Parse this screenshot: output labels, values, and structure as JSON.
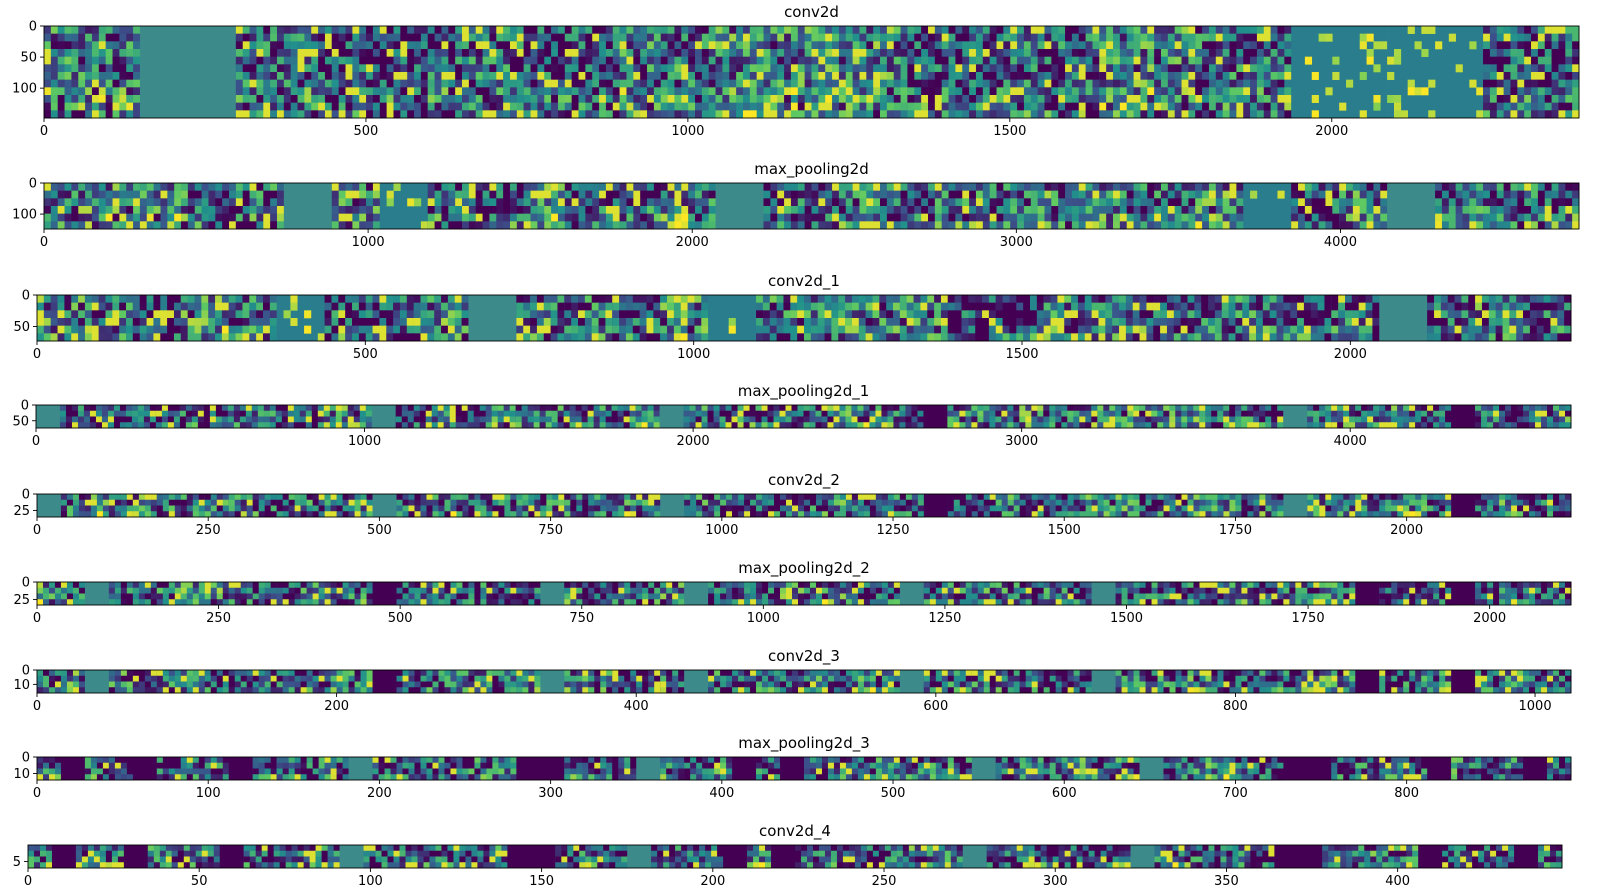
{
  "chart_data": [
    {
      "type": "heatmap",
      "title": "conv2d",
      "xlim": [
        0,
        2384
      ],
      "ylim": [
        148,
        0
      ],
      "x_ticks": [
        0,
        500,
        1000,
        1500,
        2000
      ],
      "y_ticks": [
        0,
        50,
        100
      ],
      "n_tiles": 16,
      "tile_width": 149,
      "dead_tiles": [],
      "blank_tiles": [
        1
      ],
      "sparse_tiles": [
        13,
        14
      ]
    },
    {
      "type": "heatmap",
      "title": "max_pooling2d",
      "xlim": [
        0,
        4736
      ],
      "ylim": [
        148,
        0
      ],
      "x_ticks": [
        0,
        1000,
        2000,
        3000,
        4000
      ],
      "y_ticks": [
        0,
        100
      ],
      "n_tiles": 32,
      "tile_width": 148,
      "dead_tiles": [],
      "blank_tiles": [
        5,
        14,
        28
      ],
      "sparse_tiles": [
        7,
        25
      ]
    },
    {
      "type": "heatmap",
      "title": "conv2d_1",
      "xlim": [
        0,
        2336
      ],
      "ylim": [
        73,
        0
      ],
      "x_ticks": [
        0,
        500,
        1000,
        1500,
        2000
      ],
      "y_ticks": [
        0,
        50
      ],
      "n_tiles": 32,
      "tile_width": 73,
      "dead_tiles": [],
      "blank_tiles": [
        9,
        28
      ],
      "sparse_tiles": [
        5,
        14
      ]
    },
    {
      "type": "heatmap",
      "title": "max_pooling2d_1",
      "xlim": [
        0,
        4672
      ],
      "ylim": [
        73,
        0
      ],
      "x_ticks": [
        0,
        1000,
        2000,
        3000,
        4000
      ],
      "y_ticks": [
        0,
        50
      ],
      "n_tiles": 64,
      "tile_width": 73,
      "dead_tiles": [
        37,
        59
      ],
      "blank_tiles": [
        0,
        14,
        26,
        52
      ],
      "sparse_tiles": []
    },
    {
      "type": "heatmap",
      "title": "conv2d_2",
      "xlim": [
        0,
        2240
      ],
      "ylim": [
        35,
        0
      ],
      "x_ticks": [
        0,
        250,
        500,
        750,
        1000,
        1250,
        1500,
        1750,
        2000
      ],
      "y_ticks": [
        0,
        25
      ],
      "n_tiles": 64,
      "tile_width": 35,
      "dead_tiles": [
        37,
        59
      ],
      "blank_tiles": [
        0,
        14,
        26,
        52
      ],
      "sparse_tiles": []
    },
    {
      "type": "heatmap",
      "title": "max_pooling2d_2",
      "xlim": [
        0,
        2112
      ],
      "ylim": [
        33,
        0
      ],
      "x_ticks": [
        0,
        250,
        500,
        750,
        1000,
        1250,
        1500,
        1750,
        2000
      ],
      "y_ticks": [
        0,
        25
      ],
      "n_tiles": 64,
      "tile_width": 33,
      "dead_tiles": [
        14,
        55,
        59
      ],
      "blank_tiles": [
        2,
        21,
        27,
        36,
        44
      ],
      "sparse_tiles": []
    },
    {
      "type": "heatmap",
      "title": "conv2d_3",
      "xlim": [
        0,
        1024
      ],
      "ylim": [
        16,
        0
      ],
      "x_ticks": [
        0,
        200,
        400,
        600,
        800,
        1000
      ],
      "y_ticks": [
        0,
        10
      ],
      "n_tiles": 64,
      "tile_width": 16,
      "dead_tiles": [
        14,
        55,
        59
      ],
      "blank_tiles": [
        2,
        21,
        27,
        36,
        44
      ],
      "sparse_tiles": []
    },
    {
      "type": "heatmap",
      "title": "max_pooling2d_3",
      "xlim": [
        0,
        896
      ],
      "ylim": [
        14,
        0
      ],
      "x_ticks": [
        0,
        100,
        200,
        300,
        400,
        500,
        600,
        700,
        800
      ],
      "y_ticks": [
        0,
        10
      ],
      "n_tiles": 64,
      "tile_width": 14,
      "dead_tiles": [
        1,
        4,
        8,
        20,
        21,
        29,
        31,
        52,
        53,
        58,
        62
      ],
      "blank_tiles": [
        13,
        25,
        39,
        46
      ],
      "sparse_tiles": []
    },
    {
      "type": "heatmap",
      "title": "conv2d_4",
      "xlim": [
        0,
        448
      ],
      "ylim": [
        7,
        0
      ],
      "x_ticks": [
        0,
        50,
        100,
        150,
        200,
        250,
        300,
        350,
        400
      ],
      "y_ticks": [
        5
      ],
      "n_tiles": 64,
      "tile_width": 7,
      "dead_tiles": [
        1,
        4,
        8,
        20,
        21,
        29,
        31,
        52,
        53,
        58,
        62
      ],
      "blank_tiles": [
        13,
        25,
        39,
        46
      ],
      "sparse_tiles": []
    }
  ],
  "colormap": [
    "#440154",
    "#3b528b",
    "#21918c",
    "#5ec962",
    "#fde725"
  ],
  "dead_color": "#440154",
  "blank_color": "#3d8a8a"
}
